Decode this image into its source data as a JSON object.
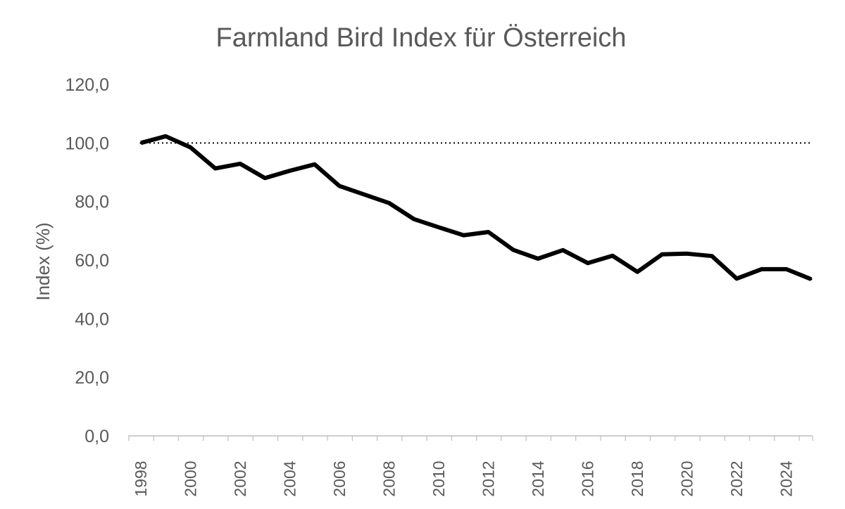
{
  "chart_data": {
    "type": "line",
    "title": "Farmland Bird Index für Österreich",
    "xlabel": "",
    "ylabel": "Index (%)",
    "ylim": [
      0,
      120
    ],
    "yticks": [
      "0,0",
      "20,0",
      "40,0",
      "60,0",
      "80,0",
      "100,0",
      "120,0"
    ],
    "xticks": [
      "1998",
      "2000",
      "2002",
      "2004",
      "2006",
      "2008",
      "2010",
      "2012",
      "2014",
      "2016",
      "2018",
      "2020",
      "2022",
      "2024"
    ],
    "reference_line": {
      "y": 100,
      "style": "dotted"
    },
    "grid": false,
    "legend": "none",
    "series": [
      {
        "color": "#000000",
        "x": [
          1998,
          1999,
          2000,
          2001,
          2002,
          2003,
          2004,
          2005,
          2006,
          2007,
          2008,
          2009,
          2010,
          2011,
          2012,
          2013,
          2014,
          2015,
          2016,
          2017,
          2018,
          2019,
          2020,
          2021,
          2022,
          2023,
          2024,
          2025
        ],
        "values": [
          100.0,
          102.3,
          98.5,
          91.3,
          92.9,
          88.0,
          90.5,
          92.7,
          85.3,
          82.4,
          79.5,
          74.0,
          71.2,
          68.5,
          69.6,
          63.5,
          60.5,
          63.4,
          59.0,
          61.5,
          56.0,
          62.0,
          62.2,
          61.4,
          53.7,
          56.9,
          56.9,
          53.5
        ]
      }
    ]
  }
}
